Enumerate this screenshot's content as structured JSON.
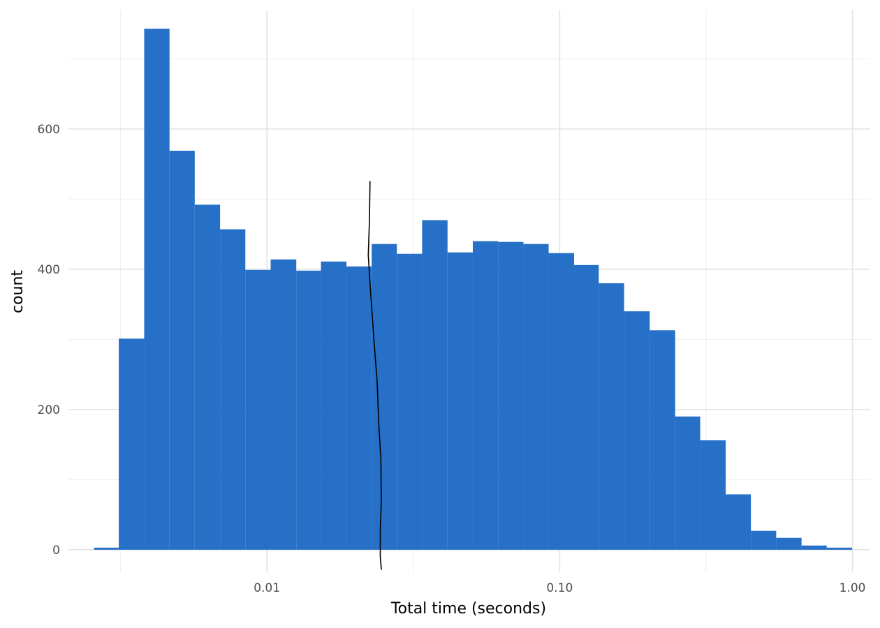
{
  "chart_data": {
    "type": "bar",
    "xlabel": "Total time (seconds)",
    "ylabel": "count",
    "x_scale": "log10",
    "xlim": [
      0.0021,
      1.15
    ],
    "ylim": [
      -32,
      770
    ],
    "x_ticks": [
      {
        "value": 0.01,
        "label": "0.01"
      },
      {
        "value": 0.1,
        "label": "0.10"
      },
      {
        "value": 1.0,
        "label": "1.00"
      }
    ],
    "y_ticks": [
      {
        "value": 0,
        "label": "0"
      },
      {
        "value": 200,
        "label": "200"
      },
      {
        "value": 400,
        "label": "400"
      },
      {
        "value": 600,
        "label": "600"
      }
    ],
    "grid": true,
    "bar_color": "#1f6bc6",
    "bins": [
      {
        "x0": 0.00257,
        "x1": 0.00312,
        "count": 3
      },
      {
        "x0": 0.00312,
        "x1": 0.00381,
        "count": 301
      },
      {
        "x0": 0.00381,
        "x1": 0.00465,
        "count": 743
      },
      {
        "x0": 0.00465,
        "x1": 0.00567,
        "count": 569
      },
      {
        "x0": 0.00567,
        "x1": 0.00692,
        "count": 492
      },
      {
        "x0": 0.00692,
        "x1": 0.00844,
        "count": 457
      },
      {
        "x0": 0.00844,
        "x1": 0.0103,
        "count": 399
      },
      {
        "x0": 0.0103,
        "x1": 0.0126,
        "count": 414
      },
      {
        "x0": 0.0126,
        "x1": 0.0153,
        "count": 398
      },
      {
        "x0": 0.0153,
        "x1": 0.0187,
        "count": 411
      },
      {
        "x0": 0.0187,
        "x1": 0.0228,
        "count": 404
      },
      {
        "x0": 0.0228,
        "x1": 0.0278,
        "count": 436
      },
      {
        "x0": 0.0278,
        "x1": 0.0339,
        "count": 422
      },
      {
        "x0": 0.0339,
        "x1": 0.0414,
        "count": 470
      },
      {
        "x0": 0.0414,
        "x1": 0.0505,
        "count": 424
      },
      {
        "x0": 0.0505,
        "x1": 0.0616,
        "count": 440
      },
      {
        "x0": 0.0616,
        "x1": 0.0752,
        "count": 439
      },
      {
        "x0": 0.0752,
        "x1": 0.0917,
        "count": 436
      },
      {
        "x0": 0.0917,
        "x1": 0.112,
        "count": 423
      },
      {
        "x0": 0.112,
        "x1": 0.136,
        "count": 406
      },
      {
        "x0": 0.136,
        "x1": 0.166,
        "count": 380
      },
      {
        "x0": 0.166,
        "x1": 0.203,
        "count": 340
      },
      {
        "x0": 0.203,
        "x1": 0.248,
        "count": 313
      },
      {
        "x0": 0.248,
        "x1": 0.302,
        "count": 190
      },
      {
        "x0": 0.302,
        "x1": 0.369,
        "count": 156
      },
      {
        "x0": 0.369,
        "x1": 0.45,
        "count": 79
      },
      {
        "x0": 0.45,
        "x1": 0.549,
        "count": 27
      },
      {
        "x0": 0.549,
        "x1": 0.67,
        "count": 17
      },
      {
        "x0": 0.67,
        "x1": 0.817,
        "count": 6
      },
      {
        "x0": 0.817,
        "x1": 0.997,
        "count": 3
      }
    ],
    "annotation_line": {
      "color": "#000000",
      "points": [
        {
          "x": 0.0225,
          "y": 525
        },
        {
          "x": 0.0224,
          "y": 470
        },
        {
          "x": 0.0222,
          "y": 420
        },
        {
          "x": 0.0225,
          "y": 380
        },
        {
          "x": 0.0232,
          "y": 300
        },
        {
          "x": 0.0238,
          "y": 240
        },
        {
          "x": 0.0241,
          "y": 180
        },
        {
          "x": 0.0245,
          "y": 130
        },
        {
          "x": 0.0246,
          "y": 70
        },
        {
          "x": 0.0244,
          "y": 30
        },
        {
          "x": 0.0244,
          "y": -10
        },
        {
          "x": 0.0246,
          "y": -28
        }
      ]
    }
  }
}
